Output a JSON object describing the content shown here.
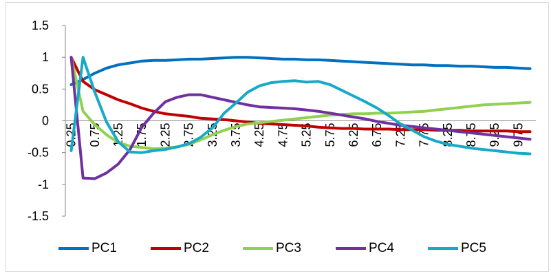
{
  "chart_data": {
    "type": "line",
    "title": "",
    "xlabel": "",
    "ylabel": "",
    "ylim": [
      -1.5,
      1.5
    ],
    "yticks": [
      1.5,
      1,
      0.5,
      0,
      -0.5,
      -1,
      -1.5
    ],
    "ytick_labels": [
      "1.5",
      "1",
      "0.5",
      "0",
      "-0.5",
      "-1",
      "-1.5"
    ],
    "x": [
      0.25,
      0.5,
      0.75,
      1,
      1.25,
      1.5,
      1.75,
      2,
      2.25,
      2.5,
      2.75,
      3,
      3.25,
      3.5,
      3.75,
      4,
      4.25,
      4.5,
      4.75,
      5,
      5.25,
      5.5,
      5.75,
      6,
      6.25,
      6.5,
      6.75,
      7,
      7.25,
      7.5,
      7.75,
      8,
      8.25,
      8.5,
      8.75,
      9,
      9.25,
      9.5,
      9.75,
      10
    ],
    "xtick_labels": [
      "0.25",
      "0.75",
      "1.25",
      "1.75",
      "2.25",
      "2.75",
      "3.25",
      "3.75",
      "4.25",
      "4.75",
      "5.25",
      "5.75",
      "6.25",
      "6.75",
      "7.25",
      "7.75",
      "8.25",
      "8.75",
      "9.25",
      "9.75"
    ],
    "legend_position": "bottom",
    "grid": false,
    "series": [
      {
        "name": "PC1",
        "color": "#0070c0",
        "values": [
          0.57,
          0.65,
          0.75,
          0.83,
          0.88,
          0.91,
          0.94,
          0.95,
          0.95,
          0.96,
          0.97,
          0.97,
          0.98,
          0.99,
          1.0,
          1.0,
          0.99,
          0.98,
          0.97,
          0.97,
          0.96,
          0.96,
          0.95,
          0.94,
          0.93,
          0.92,
          0.91,
          0.9,
          0.89,
          0.88,
          0.88,
          0.87,
          0.87,
          0.86,
          0.86,
          0.85,
          0.84,
          0.84,
          0.83,
          0.82
        ]
      },
      {
        "name": "PC2",
        "color": "#c00000",
        "values": [
          1.0,
          0.62,
          0.49,
          0.41,
          0.33,
          0.27,
          0.2,
          0.15,
          0.11,
          0.09,
          0.07,
          0.04,
          0.03,
          0.02,
          0.0,
          -0.02,
          -0.04,
          -0.05,
          -0.06,
          -0.07,
          -0.08,
          -0.1,
          -0.11,
          -0.12,
          -0.12,
          -0.13,
          -0.13,
          -0.13,
          -0.14,
          -0.14,
          -0.14,
          -0.15,
          -0.15,
          -0.15,
          -0.16,
          -0.16,
          -0.16,
          -0.16,
          -0.17,
          -0.17
        ]
      },
      {
        "name": "PC3",
        "color": "#92d050",
        "values": [
          1.0,
          0.15,
          -0.06,
          -0.22,
          -0.34,
          -0.4,
          -0.42,
          -0.44,
          -0.43,
          -0.41,
          -0.37,
          -0.3,
          -0.22,
          -0.15,
          -0.09,
          -0.05,
          -0.03,
          -0.01,
          0.01,
          0.03,
          0.05,
          0.07,
          0.09,
          0.1,
          0.11,
          0.11,
          0.12,
          0.12,
          0.13,
          0.14,
          0.15,
          0.17,
          0.19,
          0.21,
          0.23,
          0.25,
          0.26,
          0.27,
          0.28,
          0.29
        ]
      },
      {
        "name": "PC4",
        "color": "#7030a0",
        "values": [
          1.0,
          -0.9,
          -0.91,
          -0.82,
          -0.68,
          -0.45,
          -0.1,
          0.12,
          0.3,
          0.37,
          0.41,
          0.41,
          0.37,
          0.33,
          0.29,
          0.25,
          0.22,
          0.21,
          0.2,
          0.19,
          0.17,
          0.15,
          0.12,
          0.09,
          0.06,
          0.03,
          -0.01,
          -0.04,
          -0.07,
          -0.09,
          -0.11,
          -0.13,
          -0.15,
          -0.17,
          -0.19,
          -0.21,
          -0.23,
          -0.25,
          -0.27,
          -0.29
        ]
      },
      {
        "name": "PC5",
        "color": "#17a9c8",
        "values": [
          -0.47,
          1.0,
          0.45,
          -0.02,
          -0.33,
          -0.49,
          -0.5,
          -0.47,
          -0.45,
          -0.41,
          -0.36,
          -0.26,
          -0.11,
          0.12,
          0.28,
          0.45,
          0.55,
          0.6,
          0.62,
          0.63,
          0.61,
          0.62,
          0.57,
          0.48,
          0.39,
          0.3,
          0.2,
          0.08,
          -0.05,
          -0.15,
          -0.25,
          -0.32,
          -0.37,
          -0.4,
          -0.43,
          -0.45,
          -0.47,
          -0.49,
          -0.51,
          -0.52
        ]
      }
    ]
  }
}
